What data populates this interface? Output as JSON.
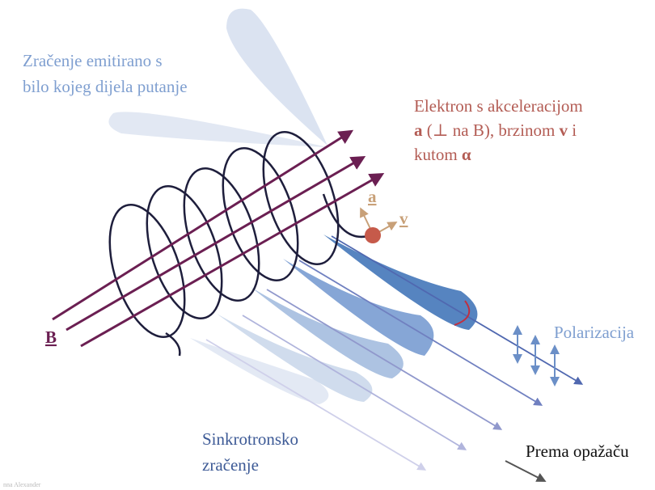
{
  "emission_note": [
    "Zračenje emitirano s",
    "bilo kojeg dijela putanje"
  ],
  "electron_note": {
    "line1": "Elektron s akceleracijom",
    "line2": [
      "a",
      " (⊥ na B), brzinom ",
      "v",
      " i"
    ],
    "line3": [
      "kutom ",
      "α"
    ]
  },
  "vector_labels": {
    "acceleration": "a",
    "velocity": "v",
    "field": "B"
  },
  "polarization": "Polarizacija",
  "synchrotron_note": [
    "Sinkrotronsko",
    "zračenje"
  ],
  "observer": "Prema opažaču",
  "credit": "nna Alexander"
}
